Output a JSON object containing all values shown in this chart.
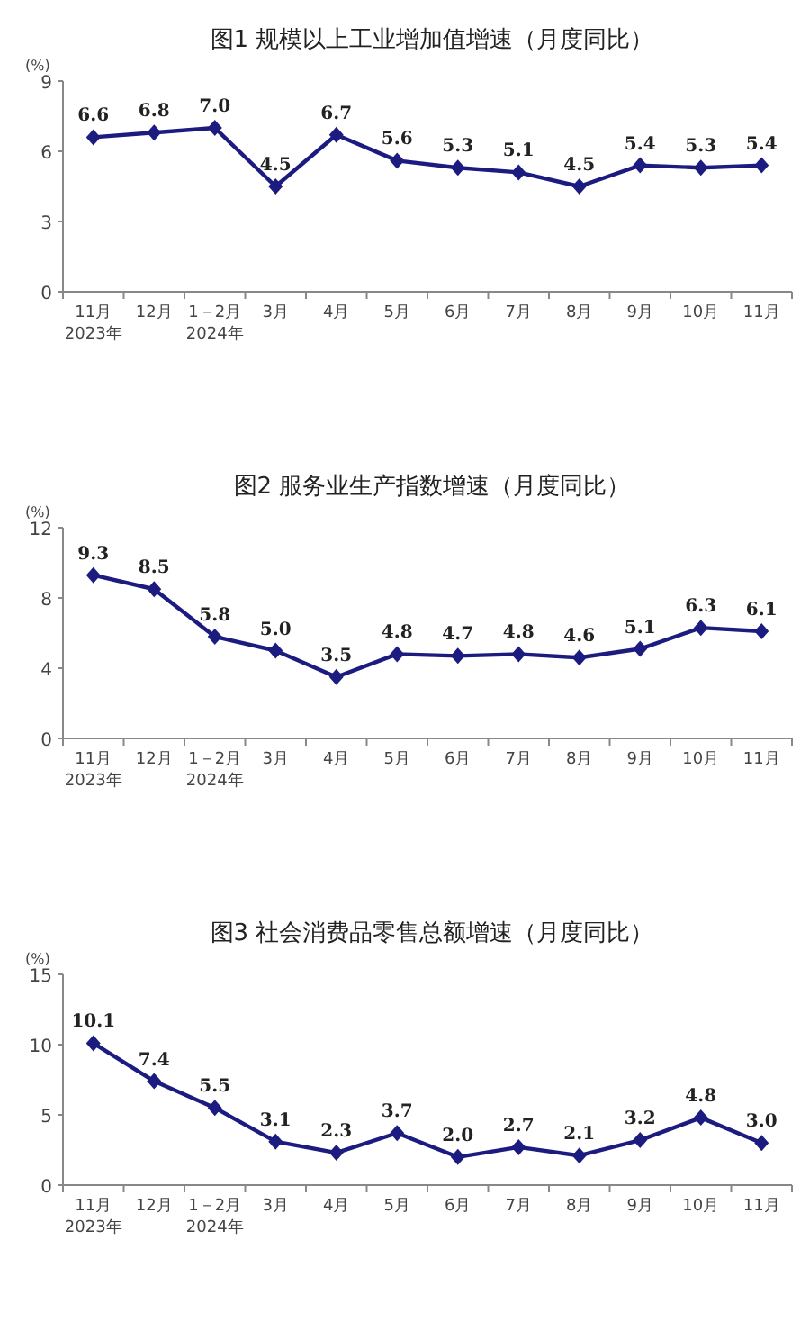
{
  "chart_data": [
    {
      "type": "line",
      "title": "图1  规模以上工业增加值增速（月度同比）",
      "ylabel": "(%)",
      "categories": [
        "11月\n2023年",
        "12月",
        "1－2月\n2024年",
        "3月",
        "4月",
        "5月",
        "6月",
        "7月",
        "8月",
        "9月",
        "10月",
        "11月"
      ],
      "series": [
        {
          "color": "#1c1c80",
          "values": [
            6.6,
            6.8,
            7.0,
            4.5,
            6.7,
            5.6,
            5.3,
            5.1,
            4.5,
            5.4,
            5.3,
            5.4
          ],
          "value_labels": [
            "6.6",
            "6.8",
            "7.0",
            "4.5",
            "6.7",
            "5.6",
            "5.3",
            "5.1",
            "4.5",
            "5.4",
            "5.3",
            "5.4"
          ]
        }
      ],
      "ylim": [
        0,
        9
      ],
      "yticks": [
        0,
        3,
        6,
        9
      ],
      "marker": "diamond"
    },
    {
      "type": "line",
      "title": "图2  服务业生产指数增速（月度同比）",
      "ylabel": "(%)",
      "categories": [
        "11月\n2023年",
        "12月",
        "1－2月\n2024年",
        "3月",
        "4月",
        "5月",
        "6月",
        "7月",
        "8月",
        "9月",
        "10月",
        "11月"
      ],
      "series": [
        {
          "color": "#1c1c80",
          "values": [
            9.3,
            8.5,
            5.8,
            5.0,
            3.5,
            4.8,
            4.7,
            4.8,
            4.6,
            5.1,
            6.3,
            6.1
          ],
          "value_labels": [
            "9.3",
            "8.5",
            "5.8",
            "5.0",
            "3.5",
            "4.8",
            "4.7",
            "4.8",
            "4.6",
            "5.1",
            "6.3",
            "6.1"
          ]
        }
      ],
      "ylim": [
        0,
        12
      ],
      "yticks": [
        0,
        4,
        8,
        12
      ],
      "marker": "diamond"
    },
    {
      "type": "line",
      "title": "图3  社会消费品零售总额增速（月度同比）",
      "ylabel": "(%)",
      "categories": [
        "11月\n2023年",
        "12月",
        "1－2月\n2024年",
        "3月",
        "4月",
        "5月",
        "6月",
        "7月",
        "8月",
        "9月",
        "10月",
        "11月"
      ],
      "series": [
        {
          "color": "#1c1c80",
          "values": [
            10.1,
            7.4,
            5.5,
            3.1,
            2.3,
            3.7,
            2.0,
            2.7,
            2.1,
            3.2,
            4.8,
            3.0
          ],
          "value_labels": [
            "10.1",
            "7.4",
            "5.5",
            "3.1",
            "2.3",
            "3.7",
            "2.0",
            "2.7",
            "2.1",
            "3.2",
            "4.8",
            "3.0"
          ]
        }
      ],
      "ylim": [
        0,
        15
      ],
      "yticks": [
        0,
        5,
        10,
        15
      ],
      "marker": "diamond"
    }
  ]
}
